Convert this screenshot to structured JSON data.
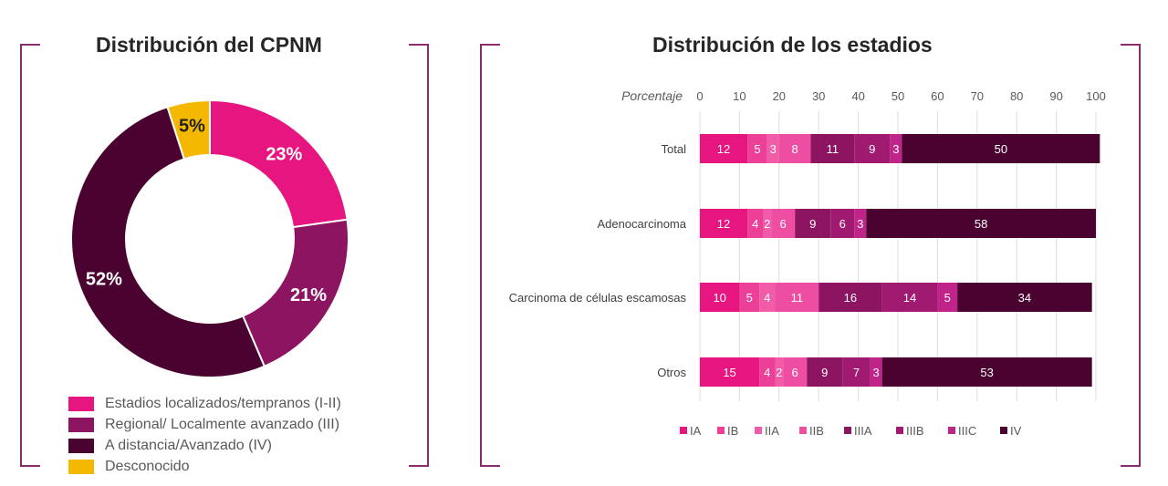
{
  "charts": {
    "donut_title": "Distribución del CPNM",
    "bar_title": "Distribución de los estadios"
  },
  "chart_data": [
    {
      "type": "pie",
      "title": "Distribución del CPNM",
      "slices": [
        {
          "label": "Estadios localizados/tempranos (I-II)",
          "value": 23,
          "display": "23%",
          "color": "#e6157f"
        },
        {
          "label": "Regional/ Localmente avanzado (III)",
          "value": 21,
          "display": "21%",
          "color": "#8c1460"
        },
        {
          "label": "A distancia/Avanzado (IV)",
          "value": 52,
          "display": "52%",
          "color": "#4a0230"
        },
        {
          "label": "Desconocido",
          "value": 5,
          "display": "5%",
          "color": "#f5b800"
        }
      ]
    },
    {
      "type": "bar",
      "orientation": "horizontal",
      "stacked": true,
      "title": "Distribución de los estadios",
      "xlabel": "Porcentaje",
      "xlim": [
        0,
        100
      ],
      "xticks": [
        "0",
        "10",
        "20",
        "30",
        "40",
        "50",
        "60",
        "70",
        "80",
        "90",
        "100"
      ],
      "grid": true,
      "legend_position": "bottom-left",
      "categories": [
        "Total",
        "Adenocarcinoma",
        "Carcinoma de células escamosas",
        "Otros"
      ],
      "series": [
        {
          "name": "IA",
          "color": "#e6157f",
          "values": [
            12,
            12,
            10,
            15
          ]
        },
        {
          "name": "IB",
          "color": "#ec3f97",
          "values": [
            5,
            4,
            5,
            4
          ]
        },
        {
          "name": "IIA",
          "color": "#f25ba8",
          "values": [
            3,
            2,
            4,
            2
          ]
        },
        {
          "name": "IIB",
          "color": "#ee4ea2",
          "values": [
            8,
            6,
            11,
            6
          ]
        },
        {
          "name": "IIIA",
          "color": "#8c1460",
          "values": [
            11,
            9,
            16,
            9
          ]
        },
        {
          "name": "IIIB",
          "color": "#a01a72",
          "values": [
            9,
            6,
            14,
            7
          ]
        },
        {
          "name": "IIIC",
          "color": "#c0238a",
          "values": [
            3,
            3,
            5,
            3
          ]
        },
        {
          "name": "IV",
          "color": "#4a0230",
          "values": [
            50,
            58,
            34,
            53
          ]
        }
      ]
    }
  ]
}
